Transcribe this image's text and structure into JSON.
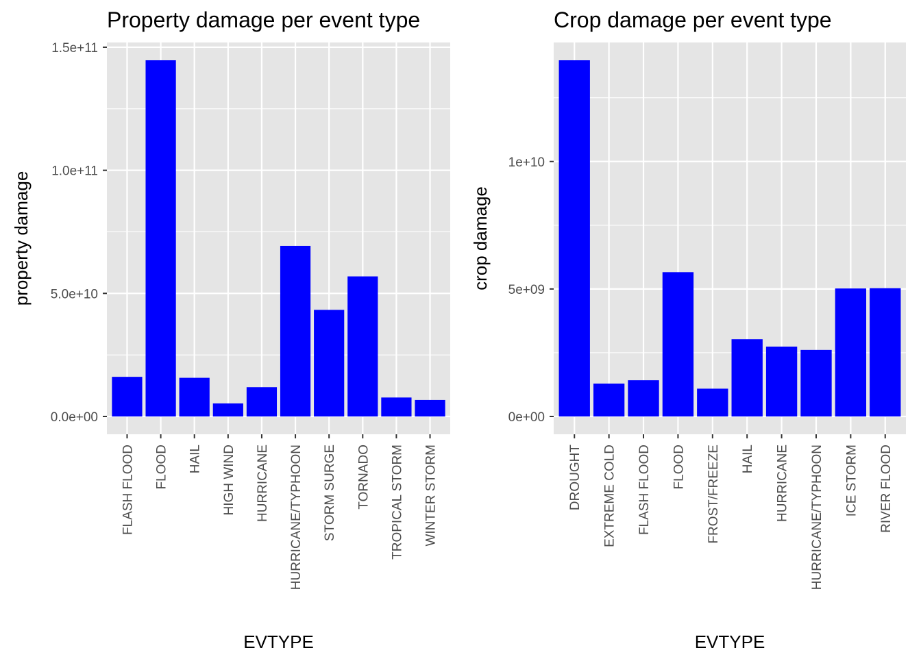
{
  "chart_data": [
    {
      "type": "bar",
      "title": "Property damage per event type",
      "xlabel": "EVTYPE",
      "ylabel": "property damage",
      "categories": [
        "FLASH FLOOD",
        "FLOOD",
        "HAIL",
        "HIGH WIND",
        "HURRICANE",
        "HURRICANE/TYPHOON",
        "STORM SURGE",
        "TORNADO",
        "TROPICAL STORM",
        "WINTER STORM"
      ],
      "values": [
        16100000000,
        144700000000,
        15700000000,
        5300000000,
        11900000000,
        69300000000,
        43300000000,
        56900000000,
        7700000000,
        6700000000
      ],
      "ylim": [
        -7235000000,
        151935000000
      ],
      "y_ticks": [
        0,
        50000000000,
        100000000000,
        150000000000
      ],
      "y_tick_labels": [
        "0.0e+00",
        "5.0e+10",
        "1.0e+11",
        "1.5e+11"
      ],
      "bar_color": "#0000ff",
      "panel_color": "#e5e5e5",
      "grid": true,
      "legend": "none"
    },
    {
      "type": "bar",
      "title": "Crop damage per event type",
      "xlabel": "EVTYPE",
      "ylabel": "crop damage",
      "categories": [
        "DROUGHT",
        "EXTREME COLD",
        "FLASH FLOOD",
        "FLOOD",
        "FROST/FREEZE",
        "HAIL",
        "HURRICANE",
        "HURRICANE/TYPHOON",
        "ICE STORM",
        "RIVER FLOOD"
      ],
      "values": [
        13970000000,
        1290000000,
        1420000000,
        5660000000,
        1090000000,
        3030000000,
        2740000000,
        2610000000,
        5020000000,
        5030000000
      ],
      "ylim": [
        -698500000,
        14668500000
      ],
      "y_ticks": [
        0,
        5000000000,
        10000000000
      ],
      "y_tick_labels": [
        "0e+00",
        "5e+09",
        "1e+10"
      ],
      "bar_color": "#0000ff",
      "panel_color": "#e5e5e5",
      "grid": true,
      "legend": "none"
    }
  ]
}
